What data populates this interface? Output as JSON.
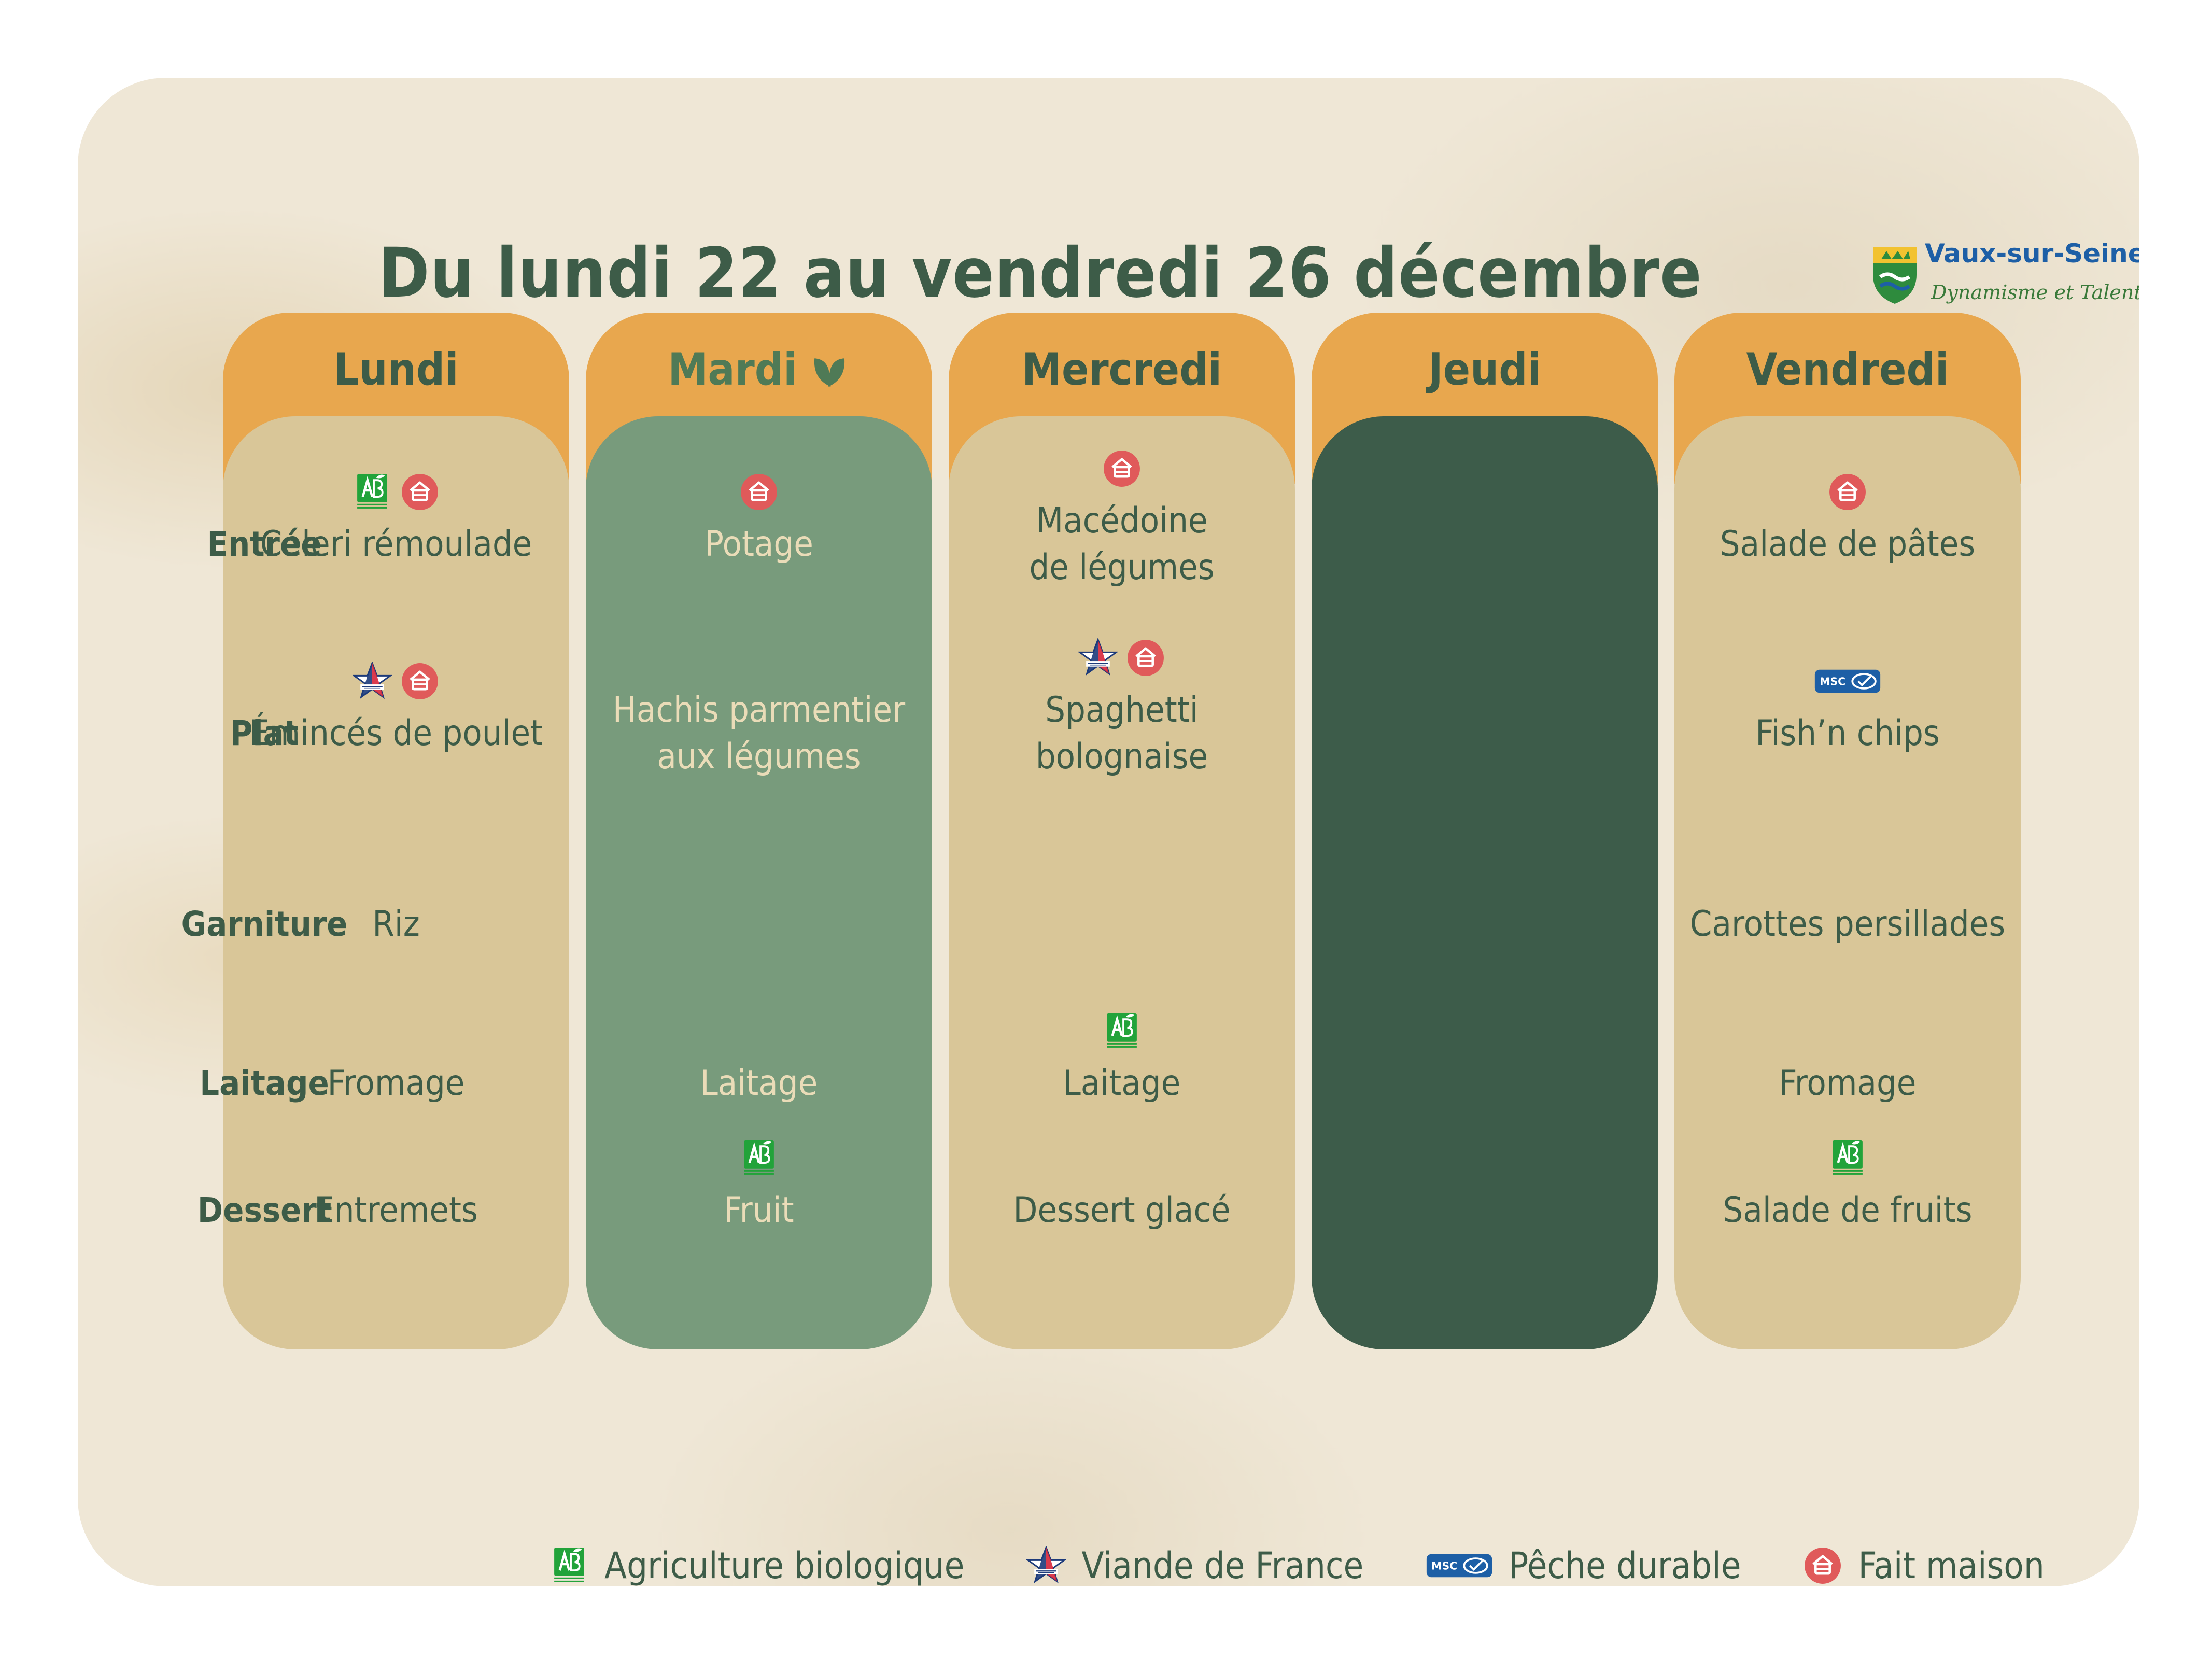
{
  "title": "Du lundi 22 au vendredi 26 décembre",
  "logo": {
    "name": "Vaux-sur-Seine",
    "tagline": "Dynamisme et Talents"
  },
  "rows": [
    "Entrée",
    "Plat",
    "Garniture",
    "Laitage",
    "Dessert"
  ],
  "days": [
    {
      "label": "Lundi",
      "dishes": {
        "entree": [
          "Céleri rémoulade"
        ],
        "plat": [
          "Émincés de poulet"
        ],
        "garniture": [
          "Riz"
        ],
        "laitage": [
          "Fromage"
        ],
        "dessert": [
          "Entremets"
        ]
      },
      "badges": {
        "entree": [
          "ab",
          "maison"
        ],
        "plat": [
          "vf",
          "maison"
        ]
      }
    },
    {
      "label": "Mardi",
      "vegetarian_icon": "leaf-icon",
      "dishes": {
        "entree": [
          "Potage"
        ],
        "plat": [
          "Hachis parmentier",
          "aux légumes"
        ],
        "laitage": [
          "Laitage"
        ],
        "dessert": [
          "Fruit"
        ]
      },
      "badges": {
        "entree": [
          "maison"
        ],
        "dessert": [
          "ab"
        ]
      }
    },
    {
      "label": "Mercredi",
      "dishes": {
        "entree": [
          "Macédoine",
          "de légumes"
        ],
        "plat": [
          "Spaghetti",
          "bolognaise"
        ],
        "laitage": [
          "Laitage"
        ],
        "dessert": [
          "Dessert glacé"
        ]
      },
      "badges": {
        "entree": [
          "maison"
        ],
        "plat": [
          "vf",
          "maison"
        ],
        "laitage": [
          "ab"
        ]
      }
    },
    {
      "label": "Jeudi",
      "dishes": {},
      "badges": {}
    },
    {
      "label": "Vendredi",
      "dishes": {
        "entree": [
          "Salade de pâtes"
        ],
        "plat": [
          "Fish’n chips"
        ],
        "garniture": [
          "Carottes persillades"
        ],
        "laitage": [
          "Fromage"
        ],
        "dessert": [
          "Salade de fruits"
        ]
      },
      "badges": {
        "entree": [
          "maison"
        ],
        "plat": [
          "msc"
        ],
        "dessert": [
          "ab"
        ]
      }
    }
  ],
  "legend": [
    {
      "icon": "ab",
      "label": "Agriculture biologique"
    },
    {
      "icon": "vf",
      "label": "Viande de France"
    },
    {
      "icon": "msc",
      "label": "Pêche durable"
    },
    {
      "icon": "maison",
      "label": "Fait maison"
    }
  ],
  "badge_icon_names": {
    "ab": "organic-ab-icon",
    "vf": "viande-de-france-icon",
    "msc": "msc-fish-icon",
    "maison": "fait-maison-icon"
  },
  "colors": {
    "background": "#efe7d6",
    "text": "#3d5c48",
    "header": "#e8a74e",
    "column": "#d9c698",
    "vegetarian_column": "#789b7c",
    "closed_column": "#3d5c4a",
    "fait_maison": "#e05a5a",
    "ab_green": "#22a33a",
    "msc_blue": "#1d5fa6"
  }
}
